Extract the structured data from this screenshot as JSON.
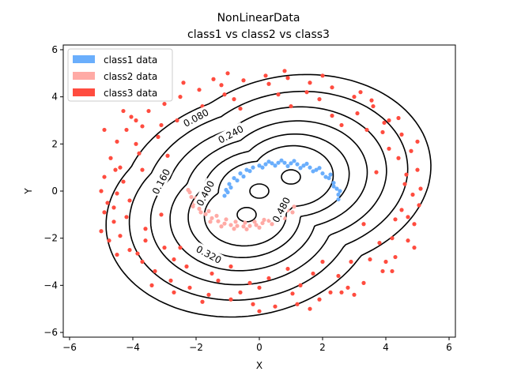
{
  "chart_data": {
    "type": "scatter",
    "title": "NonLinearData",
    "subtitle": "class1 vs  class2 vs  class3",
    "xlabel": "X",
    "ylabel": "Y",
    "xlim": [
      -6.2,
      6.2
    ],
    "ylim": [
      -6.2,
      6.2
    ],
    "xticks": [
      "−6",
      "−4",
      "−2",
      "0",
      "2",
      "4",
      "6"
    ],
    "xtick_values": [
      -6,
      -4,
      -2,
      0,
      2,
      4,
      6
    ],
    "yticks": [
      "−6",
      "−4",
      "−2",
      "0",
      "2",
      "4",
      "6"
    ],
    "ytick_values": [
      -6,
      -4,
      -2,
      0,
      2,
      4,
      6
    ],
    "grid": false,
    "legend_position": "top-left",
    "series": [
      {
        "name": "class1 data",
        "color": "#6aaefc",
        "shape": "upper crescent arc from (-1,0) through (0.5,1.2) to (2.5,-0.3)",
        "points": [
          [
            -1.1,
            -0.2
          ],
          [
            -1.05,
            0.05
          ],
          [
            -0.95,
            0.3
          ],
          [
            -0.8,
            0.55
          ],
          [
            -0.6,
            0.75
          ],
          [
            -0.4,
            0.9
          ],
          [
            -0.2,
            1.0
          ],
          [
            0.0,
            1.08
          ],
          [
            0.2,
            1.14
          ],
          [
            0.4,
            1.18
          ],
          [
            0.6,
            1.2
          ],
          [
            0.8,
            1.2
          ],
          [
            1.0,
            1.18
          ],
          [
            1.2,
            1.14
          ],
          [
            1.4,
            1.08
          ],
          [
            1.6,
            1.0
          ],
          [
            1.8,
            0.9
          ],
          [
            2.0,
            0.75
          ],
          [
            2.2,
            0.55
          ],
          [
            2.35,
            0.35
          ],
          [
            2.45,
            0.1
          ],
          [
            2.5,
            -0.15
          ],
          [
            2.5,
            -0.35
          ],
          [
            -1.0,
            -0.05
          ],
          [
            -0.7,
            0.45
          ],
          [
            -0.3,
            0.85
          ],
          [
            0.1,
            1.0
          ],
          [
            0.5,
            1.08
          ],
          [
            0.9,
            1.06
          ],
          [
            1.3,
            0.98
          ],
          [
            1.7,
            0.84
          ],
          [
            2.1,
            0.6
          ],
          [
            2.35,
            0.2
          ],
          [
            -0.9,
            0.15
          ],
          [
            -0.5,
            0.62
          ],
          [
            0.3,
            1.25
          ],
          [
            0.7,
            1.3
          ],
          [
            1.1,
            1.28
          ],
          [
            1.5,
            1.16
          ],
          [
            1.9,
            0.98
          ],
          [
            2.25,
            0.7
          ],
          [
            2.55,
            0.0
          ]
        ]
      },
      {
        "name": "class2 data",
        "color": "#ffaaa5",
        "shape": "lower crescent arc from (-2.2,0) through (-0.5,-1.4) to (1.1,-0.7)",
        "points": [
          [
            -2.2,
            -0.05
          ],
          [
            -2.15,
            -0.25
          ],
          [
            -2.05,
            -0.5
          ],
          [
            -1.9,
            -0.75
          ],
          [
            -1.7,
            -0.98
          ],
          [
            -1.5,
            -1.15
          ],
          [
            -1.3,
            -1.28
          ],
          [
            -1.1,
            -1.38
          ],
          [
            -0.9,
            -1.44
          ],
          [
            -0.7,
            -1.48
          ],
          [
            -0.5,
            -1.5
          ],
          [
            -0.3,
            -1.48
          ],
          [
            -0.1,
            -1.44
          ],
          [
            0.1,
            -1.36
          ],
          [
            0.3,
            -1.26
          ],
          [
            0.5,
            -1.12
          ],
          [
            0.7,
            -0.98
          ],
          [
            0.9,
            -0.82
          ],
          [
            1.1,
            -0.66
          ],
          [
            -2.25,
            0.05
          ],
          [
            -2.0,
            -0.3
          ],
          [
            -1.8,
            -0.6
          ],
          [
            -1.6,
            -0.85
          ],
          [
            -1.35,
            -1.05
          ],
          [
            -1.05,
            -1.2
          ],
          [
            -0.75,
            -1.3
          ],
          [
            -0.45,
            -1.34
          ],
          [
            -0.15,
            -1.3
          ],
          [
            0.15,
            -1.22
          ],
          [
            0.45,
            -1.06
          ],
          [
            0.75,
            -0.88
          ],
          [
            -2.1,
            -0.65
          ],
          [
            -1.85,
            -0.9
          ],
          [
            -1.55,
            -1.3
          ],
          [
            -1.2,
            -1.5
          ],
          [
            -0.8,
            -1.6
          ],
          [
            -0.4,
            -1.62
          ],
          [
            0.0,
            -1.55
          ],
          [
            0.4,
            -1.4
          ],
          [
            0.8,
            -1.15
          ],
          [
            1.05,
            -0.9
          ]
        ]
      },
      {
        "name": "class3 data",
        "color": "#ff4c3f",
        "shape": "noisy elliptical ring of radius approx 4 to 5",
        "points": [
          [
            -4.9,
            0.6
          ],
          [
            -4.8,
            -0.5
          ],
          [
            -4.7,
            1.4
          ],
          [
            -4.6,
            -1.3
          ],
          [
            -4.5,
            2.1
          ],
          [
            -4.4,
            -1.9
          ],
          [
            -4.2,
            2.6
          ],
          [
            -4.1,
            -2.5
          ],
          [
            -3.9,
            3.0
          ],
          [
            -3.7,
            -3.0
          ],
          [
            -3.5,
            3.4
          ],
          [
            -3.3,
            -3.4
          ],
          [
            -3.0,
            3.7
          ],
          [
            -2.8,
            -3.8
          ],
          [
            -2.5,
            4.0
          ],
          [
            -2.2,
            -4.1
          ],
          [
            -1.9,
            4.3
          ],
          [
            -1.6,
            -4.4
          ],
          [
            -1.2,
            4.5
          ],
          [
            -0.9,
            -4.6
          ],
          [
            -0.5,
            4.7
          ],
          [
            -0.2,
            -4.8
          ],
          [
            0.2,
            4.9
          ],
          [
            0.5,
            -4.9
          ],
          [
            0.9,
            4.8
          ],
          [
            1.2,
            -4.8
          ],
          [
            1.6,
            4.6
          ],
          [
            1.9,
            -4.6
          ],
          [
            2.3,
            4.4
          ],
          [
            2.6,
            -4.3
          ],
          [
            3.0,
            4.0
          ],
          [
            3.3,
            -3.9
          ],
          [
            3.6,
            3.6
          ],
          [
            3.9,
            -3.4
          ],
          [
            4.1,
            3.0
          ],
          [
            4.3,
            -2.8
          ],
          [
            4.5,
            2.4
          ],
          [
            4.7,
            -2.1
          ],
          [
            4.8,
            1.7
          ],
          [
            4.9,
            -1.4
          ],
          [
            5.0,
            0.9
          ],
          [
            5.05,
            -0.6
          ],
          [
            5.1,
            0.1
          ],
          [
            -5.0,
            0.0
          ],
          [
            -4.9,
            -0.9
          ],
          [
            -4.3,
            0.4
          ],
          [
            -4.1,
            -0.4
          ],
          [
            -3.8,
            1.6
          ],
          [
            -3.6,
            -1.6
          ],
          [
            -3.2,
            2.3
          ],
          [
            -3.0,
            -2.4
          ],
          [
            -2.6,
            3.0
          ],
          [
            -2.3,
            -3.2
          ],
          [
            -1.8,
            3.6
          ],
          [
            -1.3,
            -3.8
          ],
          [
            -0.8,
            3.9
          ],
          [
            0.0,
            -4.1
          ],
          [
            0.6,
            4.1
          ],
          [
            1.3,
            -4.0
          ],
          [
            1.9,
            3.9
          ],
          [
            2.5,
            -3.6
          ],
          [
            3.1,
            3.3
          ],
          [
            3.5,
            -2.9
          ],
          [
            3.9,
            2.5
          ],
          [
            4.2,
            -2.0
          ],
          [
            4.4,
            1.4
          ],
          [
            4.5,
            -0.8
          ],
          [
            4.6,
            0.3
          ],
          [
            -4.5,
            -0.1
          ],
          [
            -4.4,
            1.0
          ],
          [
            -4.2,
            -1.1
          ],
          [
            -3.9,
            2.0
          ],
          [
            -3.6,
            -2.1
          ],
          [
            -3.1,
            2.8
          ],
          [
            -2.7,
            -2.9
          ],
          [
            -2.0,
            3.3
          ],
          [
            -1.5,
            -3.5
          ],
          [
            -0.6,
            3.5
          ],
          [
            0.3,
            -3.7
          ],
          [
            1.0,
            3.6
          ],
          [
            1.7,
            -3.5
          ],
          [
            2.3,
            3.2
          ],
          [
            2.9,
            -3.0
          ],
          [
            3.4,
            2.6
          ],
          [
            3.8,
            -2.2
          ],
          [
            4.1,
            1.8
          ],
          [
            4.3,
            -1.2
          ],
          [
            -2.4,
            4.6
          ],
          [
            -1.0,
            5.0
          ],
          [
            0.8,
            5.1
          ],
          [
            2.0,
            4.9
          ],
          [
            3.2,
            4.2
          ],
          [
            4.4,
            3.1
          ],
          [
            5.0,
            2.1
          ],
          [
            -3.4,
            -4.0
          ],
          [
            -1.8,
            -4.7
          ],
          [
            0.0,
            -5.1
          ],
          [
            1.6,
            -5.0
          ],
          [
            3.0,
            -4.4
          ],
          [
            4.2,
            -3.4
          ],
          [
            4.9,
            -2.4
          ],
          [
            -4.9,
            2.6
          ],
          [
            -5.0,
            -1.7
          ],
          [
            -4.3,
            3.4
          ],
          [
            -4.5,
            -2.7
          ],
          [
            0.9,
            -3.3
          ],
          [
            -0.9,
            -3.2
          ],
          [
            2.0,
            -3.0
          ],
          [
            -2.9,
            1.5
          ],
          [
            2.6,
            2.8
          ],
          [
            -2.5,
            -2.4
          ],
          [
            3.7,
            0.8
          ],
          [
            -3.7,
            0.9
          ],
          [
            -3.1,
            -1.0
          ],
          [
            3.3,
            -1.4
          ],
          [
            -0.3,
            -3.9
          ],
          [
            -1.1,
            4.1
          ],
          [
            1.5,
            4.2
          ],
          [
            4.7,
            -1.1
          ],
          [
            -4.75,
            -2.1
          ],
          [
            -4.05,
            3.15
          ],
          [
            3.55,
            3.85
          ],
          [
            2.8,
            -4.1
          ],
          [
            -2.7,
            -4.3
          ],
          [
            -0.6,
            -4.3
          ],
          [
            0.3,
            4.55
          ],
          [
            4.65,
            0.7
          ],
          [
            4.85,
            -0.15
          ],
          [
            -4.55,
            0.9
          ],
          [
            -4.6,
            -0.7
          ],
          [
            -3.85,
            -2.65
          ],
          [
            1.05,
            -4.35
          ],
          [
            2.25,
            -4.3
          ],
          [
            -1.45,
            4.75
          ],
          [
            -3.7,
            2.75
          ],
          [
            3.95,
            2.9
          ],
          [
            4.0,
            -3.0
          ]
        ]
      }
    ],
    "contours": {
      "color": "#000000",
      "levels": [
        "0.080",
        "0.160",
        "0.240",
        "0.320",
        "0.400",
        "0.480"
      ],
      "labels": [
        {
          "text": "0.080",
          "x": -2.0,
          "y": 3.1,
          "angle": -28
        },
        {
          "text": "0.240",
          "x": -0.9,
          "y": 2.4,
          "angle": -28
        },
        {
          "text": "0.160",
          "x": -3.1,
          "y": 0.4,
          "angle": -62
        },
        {
          "text": "0.400",
          "x": -1.7,
          "y": -0.1,
          "angle": -62
        },
        {
          "text": "0.480",
          "x": 0.7,
          "y": -0.8,
          "angle": -62
        },
        {
          "text": "0.320",
          "x": -1.6,
          "y": -2.7,
          "angle": 28
        }
      ]
    },
    "centers": [
      [
        -0.4,
        -1.0
      ],
      [
        0.0,
        0.0
      ],
      [
        1.0,
        0.6
      ]
    ]
  }
}
